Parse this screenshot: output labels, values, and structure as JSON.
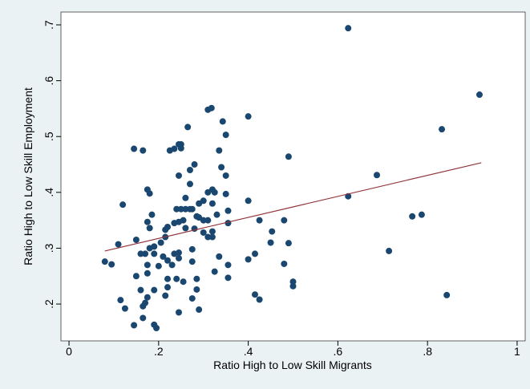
{
  "chart_data": {
    "type": "scatter",
    "xlabel": "Ratio High to Low Skill Migrants",
    "ylabel": "Ratio High to Low Skill Employment",
    "xlim": [
      -0.018,
      1.018
    ],
    "ylim": [
      0.134,
      0.723
    ],
    "xticks": [
      0,
      {
        "value": 0.2,
        "label": ".2"
      },
      {
        "value": 0.4,
        "label": ".4"
      },
      {
        "value": 0.6,
        "label": ".6"
      },
      {
        "value": 0.8,
        "label": ".8"
      },
      1
    ],
    "yticks": [
      {
        "value": 0.2,
        "label": ".2"
      },
      {
        "value": 0.3,
        "label": ".3"
      },
      {
        "value": 0.4,
        "label": ".4"
      },
      {
        "value": 0.5,
        "label": ".5"
      },
      {
        "value": 0.6,
        "label": ".6"
      },
      {
        "value": 0.7,
        "label": ".7"
      }
    ],
    "grid": false,
    "series": [
      {
        "type": "scatter",
        "color": "#1a476f",
        "x": [
          0.623,
          0.916,
          0.832,
          0.687,
          0.623,
          0.766,
          0.787,
          0.714,
          0.843,
          0.49,
          0.4,
          0.425,
          0.453,
          0.48,
          0.45,
          0.49,
          0.48,
          0.5,
          0.5,
          0.415,
          0.4,
          0.415,
          0.425,
          0.4,
          0.31,
          0.318,
          0.343,
          0.35,
          0.335,
          0.34,
          0.35,
          0.32,
          0.31,
          0.325,
          0.35,
          0.32,
          0.3,
          0.29,
          0.27,
          0.29,
          0.3,
          0.31,
          0.33,
          0.355,
          0.355,
          0.3,
          0.32,
          0.32,
          0.335,
          0.355,
          0.355,
          0.325,
          0.31,
          0.265,
          0.245,
          0.25,
          0.25,
          0.235,
          0.225,
          0.28,
          0.27,
          0.245,
          0.27,
          0.26,
          0.24,
          0.25,
          0.26,
          0.275,
          0.245,
          0.235,
          0.255,
          0.285,
          0.28,
          0.26,
          0.22,
          0.215,
          0.215,
          0.205,
          0.19,
          0.18,
          0.21,
          0.22,
          0.235,
          0.245,
          0.245,
          0.275,
          0.275,
          0.23,
          0.2,
          0.22,
          0.24,
          0.255,
          0.285,
          0.285,
          0.22,
          0.215,
          0.245,
          0.29,
          0.275,
          0.145,
          0.165,
          0.12,
          0.175,
          0.18,
          0.185,
          0.175,
          0.18,
          0.15,
          0.11,
          0.08,
          0.095,
          0.16,
          0.17,
          0.175,
          0.15,
          0.175,
          0.19,
          0.115,
          0.125,
          0.16,
          0.175,
          0.165,
          0.17,
          0.19,
          0.195,
          0.19,
          0.145,
          0.165
        ],
        "values": [
          0.694,
          0.575,
          0.513,
          0.431,
          0.393,
          0.357,
          0.36,
          0.295,
          0.216,
          0.464,
          0.385,
          0.35,
          0.33,
          0.35,
          0.31,
          0.309,
          0.272,
          0.24,
          0.232,
          0.29,
          0.28,
          0.217,
          0.208,
          0.536,
          0.548,
          0.551,
          0.527,
          0.503,
          0.475,
          0.445,
          0.43,
          0.405,
          0.4,
          0.4,
          0.397,
          0.38,
          0.385,
          0.38,
          0.37,
          0.355,
          0.35,
          0.35,
          0.36,
          0.367,
          0.345,
          0.328,
          0.33,
          0.32,
          0.285,
          0.27,
          0.247,
          0.258,
          0.32,
          0.517,
          0.486,
          0.486,
          0.479,
          0.478,
          0.475,
          0.45,
          0.44,
          0.43,
          0.415,
          0.39,
          0.37,
          0.37,
          0.37,
          0.37,
          0.347,
          0.345,
          0.35,
          0.357,
          0.335,
          0.336,
          0.338,
          0.333,
          0.32,
          0.31,
          0.303,
          0.3,
          0.285,
          0.278,
          0.29,
          0.292,
          0.282,
          0.298,
          0.276,
          0.27,
          0.268,
          0.245,
          0.245,
          0.24,
          0.245,
          0.226,
          0.23,
          0.215,
          0.185,
          0.19,
          0.21,
          0.478,
          0.475,
          0.378,
          0.405,
          0.398,
          0.36,
          0.347,
          0.336,
          0.315,
          0.307,
          0.276,
          0.271,
          0.29,
          0.29,
          0.27,
          0.25,
          0.255,
          0.29,
          0.207,
          0.192,
          0.225,
          0.212,
          0.196,
          0.202,
          0.225,
          0.157,
          0.163,
          0.162,
          0.175
        ]
      },
      {
        "type": "line",
        "color": "#90353b",
        "x": [
          0.08,
          0.92
        ],
        "values": [
          0.295,
          0.453
        ]
      }
    ]
  }
}
